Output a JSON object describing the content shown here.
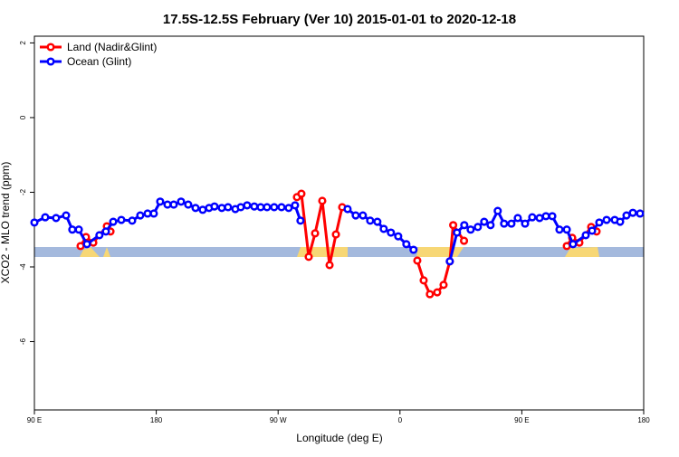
{
  "chart_data": {
    "type": "line",
    "title": "17.5S-12.5S February (Ver 10)   2015-01-01 to 2020-12-18",
    "x_label": "Longitude (deg E)",
    "y_label": "XCO2 - MLO trend (ppm)",
    "xlim": [
      90,
      540
    ],
    "xticks": [
      {
        "value": 90,
        "label": "90 E"
      },
      {
        "value": 180,
        "label": "180"
      },
      {
        "value": 270,
        "label": "90 W"
      },
      {
        "value": 360,
        "label": "0"
      },
      {
        "value": 450,
        "label": "90 E"
      },
      {
        "value": 540,
        "label": "180"
      }
    ],
    "ylim": [
      -7.83,
      2.18
    ],
    "yticks": [
      2,
      0,
      -2,
      -4,
      -6
    ],
    "legend": "topleft",
    "series": [
      {
        "name": "Land (Nadir&Glint)",
        "color": "#ff0000",
        "x": [
          124.1,
          128.1,
          133.5,
          143.5,
          146.2,
          215,
          283.9,
          287.2,
          292.6,
          297.3,
          302.6,
          308,
          312.7,
          317.3,
          345,
          372.8,
          377.5,
          382.1,
          387.5,
          392.2,
          396.8,
          399.3,
          407.3,
          450,
          483.2,
          487.2,
          492.5,
          501.2,
          505.2
        ],
        "values": [
          -3.44,
          -3.2,
          -3.35,
          -2.91,
          -3.05,
          null,
          -2.13,
          -2.04,
          -3.73,
          -3.1,
          -2.23,
          -3.95,
          -3.13,
          -2.4,
          null,
          -3.83,
          -4.36,
          -4.73,
          -4.68,
          -4.48,
          -3.85,
          -2.88,
          -3.3,
          null,
          -3.44,
          -3.22,
          -3.35,
          -2.93,
          -3.05
        ]
      },
      {
        "name": "Ocean (Glint)",
        "color": "#0000ff",
        "x": [
          90,
          98,
          106,
          113.4,
          118,
          122.8,
          128.8,
          138,
          142.8,
          148.2,
          154.2,
          162.2,
          168.2,
          173.6,
          178.2,
          182.9,
          188.3,
          192.9,
          198.3,
          203.6,
          209,
          214.3,
          219,
          223,
          228.4,
          233,
          238.4,
          242.4,
          247.1,
          252.4,
          257.1,
          261.8,
          267.1,
          272.5,
          277.8,
          282.5,
          286.5,
          300,
          321.3,
          327.3,
          332.6,
          338,
          343.3,
          348,
          353.3,
          358.7,
          364.7,
          370,
          385,
          396.8,
          402.1,
          407.5,
          412.2,
          417.5,
          422.2,
          426.9,
          432.2,
          436.9,
          442.3,
          447,
          452.4,
          457.7,
          463.1,
          467.8,
          472.5,
          477.8,
          483.2,
          487.8,
          497.2,
          501.9,
          507.2,
          512.6,
          518.6,
          522.6,
          527.3,
          532,
          537.3
        ],
        "values": [
          -2.81,
          -2.67,
          -2.69,
          -2.62,
          -3.0,
          -3.0,
          -3.39,
          -3.15,
          -3.05,
          -2.79,
          -2.74,
          -2.76,
          -2.62,
          -2.57,
          -2.57,
          -2.25,
          -2.33,
          -2.33,
          -2.25,
          -2.33,
          -2.42,
          -2.47,
          -2.42,
          -2.38,
          -2.42,
          -2.4,
          -2.45,
          -2.4,
          -2.35,
          -2.38,
          -2.4,
          -2.4,
          -2.4,
          -2.4,
          -2.42,
          -2.35,
          -2.76,
          null,
          -2.45,
          -2.62,
          -2.62,
          -2.76,
          -2.79,
          -2.98,
          -3.08,
          -3.18,
          -3.39,
          -3.54,
          null,
          -3.85,
          -3.08,
          -2.88,
          -3.0,
          -2.93,
          -2.79,
          -2.88,
          -2.5,
          -2.84,
          -2.84,
          -2.69,
          -2.84,
          -2.67,
          -2.69,
          -2.64,
          -2.64,
          -3.0,
          -3.0,
          -3.39,
          -3.15,
          -3.03,
          -2.81,
          -2.74,
          -2.74,
          -2.79,
          -2.62,
          -2.55,
          -2.57
        ]
      }
    ]
  }
}
